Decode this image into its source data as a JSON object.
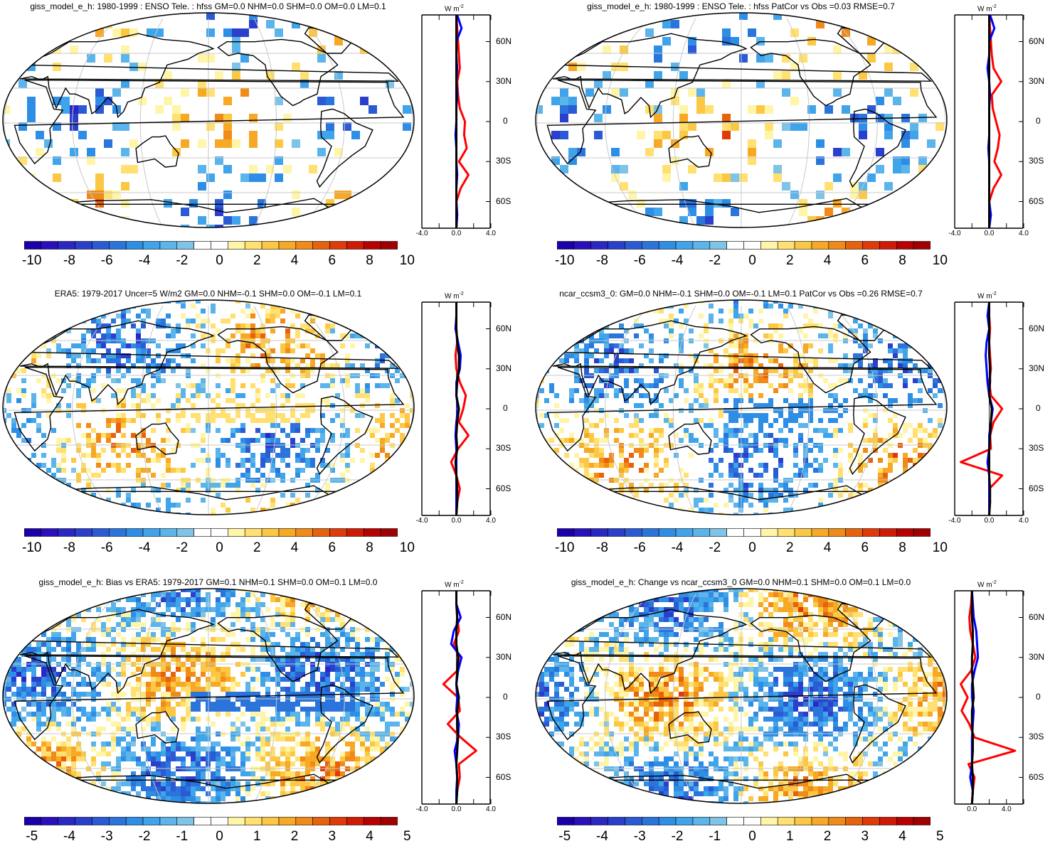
{
  "figure": {
    "colors": {
      "palette_pos": [
        "#ffffff",
        "#fff5a8",
        "#ffe070",
        "#fcc844",
        "#f7a824",
        "#f08a18",
        "#e8620c",
        "#e03a08",
        "#d01a06",
        "#b80000"
      ],
      "palette_neg": [
        "#7fc3e6",
        "#5bb4ea",
        "#40a4ea",
        "#2e8ee6",
        "#2a74dc",
        "#2a5ad4",
        "#2a3fcc",
        "#2a28c4",
        "#2a10bc",
        "#1a00aa"
      ],
      "model_line": "#0000ff",
      "obs_line": "#000000",
      "diff_line": "#ff0000",
      "grid": "#c8c8c8"
    },
    "panels": [
      {
        "title": "giss_model_e_h: 1980-1999 : ENSO Tele. : hfss GM=0.0 NHM=0.0 SHM=0.0 OM=0.0 LM=0.1",
        "colorbar_labels": [
          "-10",
          "-8",
          "-6",
          "-4",
          "-2",
          "0",
          "2",
          "4",
          "6",
          "8",
          "10"
        ],
        "units": "W m",
        "units_sup": "-2",
        "lat_labels": [
          "60N",
          "30N",
          "0",
          "30S",
          "60S"
        ],
        "x_ticks": [
          "-4.0",
          "0.0",
          "4.0"
        ]
      },
      {
        "title": "giss_model_e_h: 1980-1999 : ENSO Tele. : hfss PatCor vs Obs =0.03 RMSE=0.7",
        "colorbar_labels": [
          "-10",
          "-8",
          "-6",
          "-4",
          "-2",
          "0",
          "2",
          "4",
          "6",
          "8",
          "10"
        ],
        "units": "W m",
        "units_sup": "-2",
        "lat_labels": [
          "60N",
          "30N",
          "0",
          "30S",
          "60S"
        ],
        "x_ticks": [
          "-4.0",
          "0.0",
          "4.0"
        ]
      },
      {
        "title": "ERA5: 1979-2017 Uncer=5 W/m2 GM=0.0 NHM=-0.1 SHM=0.0 OM=-0.1 LM=0.1",
        "colorbar_labels": [
          "-10",
          "-8",
          "-6",
          "-4",
          "-2",
          "0",
          "2",
          "4",
          "6",
          "8",
          "10"
        ],
        "units": "W m",
        "units_sup": "-2",
        "lat_labels": [
          "60N",
          "30N",
          "0",
          "30S",
          "60S"
        ],
        "x_ticks": [
          "-4.0",
          "0.0",
          "4.0"
        ]
      },
      {
        "title": "ncar_ccsm3_0: GM=0.0 NHM=-0.1 SHM=0.0 OM=-0.1 LM=0.1 PatCor vs Obs =0.26 RMSE=0.7",
        "colorbar_labels": [
          "-10",
          "-8",
          "-6",
          "-4",
          "-2",
          "0",
          "2",
          "4",
          "6",
          "8",
          "10"
        ],
        "units": "W m",
        "units_sup": "-2",
        "lat_labels": [
          "60N",
          "30N",
          "0",
          "30S",
          "60S"
        ],
        "x_ticks": [
          "-4.0",
          "0.0",
          "4.0"
        ]
      },
      {
        "title": "giss_model_e_h: Bias vs ERA5: 1979-2017 GM=0.1 NHM=0.1 SHM=0.0 OM=0.1 LM=0.0",
        "colorbar_labels": [
          "-5",
          "-4",
          "-3",
          "-2",
          "-1",
          "0",
          "1",
          "2",
          "3",
          "4",
          "5"
        ],
        "units": "W m",
        "units_sup": "-2",
        "lat_labels": [
          "60N",
          "30N",
          "0",
          "30S",
          "60S"
        ],
        "x_ticks": [
          "-4.0",
          "0.0",
          "4.0"
        ]
      },
      {
        "title": "giss_model_e_h: Change vs ncar_ccsm3_0 GM=0.0 NHM=0.1 SHM=0.0 OM=0.1 LM=0.0",
        "colorbar_labels": [
          "-5",
          "-4",
          "-3",
          "-2",
          "-1",
          "0",
          "1",
          "2",
          "3",
          "4",
          "5"
        ],
        "units": "W m",
        "units_sup": "-2",
        "lat_labels": [
          "60N",
          "30N",
          "0",
          "30S",
          "60S"
        ],
        "x_ticks": [
          "0.0",
          "4.0"
        ]
      }
    ]
  },
  "chart_data": [
    {
      "type": "heatmap",
      "title": "giss_model_e_h: 1980-1999 : ENSO Tele. : hfss GM=0.0 NHM=0.0 SHM=0.0 OM=0.0 LM=0.1",
      "colorbar_range": [
        -10,
        10
      ],
      "colorbar_step": 1,
      "zonal_mean": {
        "ylim": [
          -80,
          80
        ],
        "xlim": [
          -4,
          4
        ],
        "units": "W m-2",
        "lat": [
          -80,
          -70,
          -60,
          -50,
          -40,
          -30,
          -20,
          -10,
          0,
          10,
          20,
          30,
          40,
          50,
          60,
          70,
          80
        ],
        "series": [
          {
            "values": [
              0.0,
              0.1,
              0.0,
              0.5,
              1.4,
              0.3,
              1.2,
              0.9,
              1.0,
              0.4,
              0.2,
              0.1,
              0.4,
              0.3,
              0.2,
              0.1,
              0.0
            ]
          },
          {
            "values": [
              0.0,
              0.1,
              0.0,
              0.0,
              0.1,
              0.0,
              0.0,
              -0.1,
              0.0,
              0.0,
              0.1,
              0.0,
              0.1,
              0.0,
              0.0,
              0.6,
              0.1
            ]
          },
          {
            "values": [
              0.0,
              0.0,
              0.0,
              0.0,
              0.0,
              0.0,
              0.0,
              0.0,
              0.0,
              0.0,
              0.0,
              0.0,
              0.0,
              0.0,
              0.0,
              0.0,
              0.0
            ]
          }
        ]
      }
    },
    {
      "type": "heatmap",
      "title": "giss_model_e_h: 1980-1999 : ENSO Tele. : hfss PatCor vs Obs =0.03 RMSE=0.7",
      "colorbar_range": [
        -10,
        10
      ],
      "colorbar_step": 1,
      "zonal_mean": {
        "ylim": [
          -80,
          80
        ],
        "xlim": [
          -4,
          4
        ],
        "units": "W m-2",
        "lat": [
          -80,
          -70,
          -60,
          -50,
          -40,
          -30,
          -20,
          -10,
          0,
          10,
          20,
          30,
          40,
          50,
          60,
          70,
          80
        ],
        "series": [
          {
            "values": [
              0.0,
              0.1,
              0.0,
              0.5,
              1.4,
              0.6,
              1.0,
              1.2,
              0.8,
              0.4,
              0.3,
              1.4,
              0.5,
              0.3,
              0.2,
              0.1,
              0.0
            ]
          },
          {
            "values": [
              0.0,
              0.2,
              0.0,
              0.0,
              0.0,
              0.0,
              -0.1,
              0.0,
              0.0,
              0.0,
              0.1,
              0.0,
              -0.2,
              0.0,
              0.0,
              0.6,
              0.1
            ]
          },
          {
            "values": [
              0.0,
              0.0,
              0.0,
              0.0,
              0.0,
              0.0,
              0.0,
              0.0,
              0.0,
              0.0,
              0.0,
              0.0,
              0.0,
              0.0,
              0.0,
              0.0,
              0.0
            ]
          }
        ]
      }
    },
    {
      "type": "heatmap",
      "title": "ERA5: 1979-2017 Uncer=5 W/m2 GM=0.0 NHM=-0.1 SHM=0.0 OM=-0.1 LM=0.1",
      "colorbar_range": [
        -10,
        10
      ],
      "colorbar_step": 1,
      "zonal_mean": {
        "ylim": [
          -80,
          80
        ],
        "xlim": [
          -4,
          4
        ],
        "units": "W m-2",
        "lat": [
          -80,
          -70,
          -60,
          -50,
          -40,
          -30,
          -20,
          -10,
          0,
          10,
          20,
          30,
          40,
          50,
          60,
          70,
          80
        ],
        "series": [
          {
            "values": [
              0.0,
              0.1,
              0.4,
              0.0,
              -0.6,
              0.2,
              1.4,
              0.3,
              0.8,
              1.1,
              0.4,
              0.0,
              -0.1,
              0.1,
              0.0,
              0.0,
              0.0
            ]
          },
          {
            "values": [
              0.0,
              0.0,
              0.0,
              0.0,
              0.0,
              0.0,
              -0.1,
              0.0,
              0.2,
              0.0,
              0.0,
              0.4,
              0.5,
              0.2,
              -0.1,
              0.0,
              0.0
            ]
          },
          {
            "values": [
              0.0,
              0.1,
              0.1,
              0.0,
              -0.1,
              0.1,
              0.0,
              0.1,
              0.3,
              0.0,
              0.1,
              0.3,
              0.3,
              0.1,
              0.0,
              0.0,
              0.0
            ]
          }
        ]
      }
    },
    {
      "type": "heatmap",
      "title": "ncar_ccsm3_0: GM=0.0 NHM=-0.1 SHM=0.0 OM=-0.1 LM=0.1 PatCor vs Obs =0.26 RMSE=0.7",
      "colorbar_range": [
        -10,
        10
      ],
      "colorbar_step": 1,
      "zonal_mean": {
        "ylim": [
          -80,
          80
        ],
        "xlim": [
          -4,
          4
        ],
        "units": "W m-2",
        "lat": [
          -80,
          -70,
          -60,
          -50,
          -40,
          -30,
          -20,
          -10,
          0,
          10,
          20,
          30,
          40,
          50,
          60,
          70,
          80
        ],
        "series": [
          {
            "values": [
              0.0,
              0.1,
              0.0,
              1.5,
              -3.3,
              0.2,
              0.1,
              0.5,
              1.5,
              0.2,
              0.0,
              0.2,
              0.1,
              0.0,
              0.1,
              0.0,
              0.0
            ]
          },
          {
            "values": [
              0.0,
              0.0,
              0.0,
              0.0,
              -0.2,
              0.0,
              0.0,
              0.2,
              0.4,
              0.0,
              -0.2,
              -0.3,
              -0.4,
              -0.3,
              0.0,
              -0.2,
              0.0
            ]
          },
          {
            "values": [
              0.0,
              0.1,
              0.1,
              0.0,
              0.0,
              0.0,
              0.1,
              0.2,
              0.3,
              0.0,
              0.1,
              0.1,
              0.0,
              0.0,
              0.0,
              0.0,
              0.0
            ]
          }
        ]
      }
    },
    {
      "type": "heatmap",
      "title": "giss_model_e_h: Bias vs ERA5: 1979-2017 GM=0.1 NHM=0.1 SHM=0.0 OM=0.1 LM=0.0",
      "colorbar_range": [
        -5,
        5
      ],
      "colorbar_step": 0.5,
      "zonal_mean": {
        "ylim": [
          -80,
          80
        ],
        "xlim": [
          -4,
          4
        ],
        "units": "W m-2",
        "lat": [
          -80,
          -70,
          -60,
          -50,
          -40,
          -30,
          -20,
          -10,
          0,
          10,
          20,
          30,
          40,
          50,
          60,
          70,
          80
        ],
        "series": [
          {
            "values": [
              0.0,
              0.1,
              0.4,
              0.3,
              2.3,
              0.5,
              -1.0,
              0.4,
              0.2,
              -1.5,
              0.1,
              0.3,
              -0.3,
              0.3,
              0.1,
              0.0,
              0.0
            ]
          },
          {
            "values": [
              0.0,
              0.0,
              0.1,
              0.0,
              -0.2,
              0.2,
              0.3,
              0.0,
              0.1,
              0.0,
              0.2,
              0.6,
              -0.6,
              -0.3,
              0.5,
              0.0,
              0.0
            ]
          },
          {
            "values": [
              0.0,
              0.1,
              0.1,
              0.0,
              0.1,
              0.2,
              0.1,
              0.1,
              0.3,
              0.0,
              0.1,
              0.2,
              0.0,
              0.0,
              0.1,
              0.0,
              0.0
            ]
          }
        ]
      }
    },
    {
      "type": "heatmap",
      "title": "giss_model_e_h: Change vs ncar_ccsm3_0 GM=0.0 NHM=0.1 SHM=0.0 OM=0.1 LM=0.0",
      "colorbar_range": [
        -5,
        5
      ],
      "colorbar_step": 0.5,
      "zonal_mean": {
        "ylim": [
          -80,
          80
        ],
        "xlim": [
          -2,
          6
        ],
        "units": "W m-2",
        "lat": [
          -80,
          -70,
          -60,
          -50,
          -40,
          -30,
          -20,
          -10,
          0,
          10,
          20,
          30,
          40,
          50,
          60,
          70,
          80
        ],
        "series": [
          {
            "values": [
              0.0,
              0.1,
              0.3,
              -0.4,
              5.0,
              0.3,
              -0.3,
              -1.2,
              -0.5,
              -1.3,
              -0.1,
              0.4,
              0.1,
              -0.2,
              -0.3,
              -0.1,
              0.0
            ]
          },
          {
            "values": [
              0.0,
              0.1,
              -0.2,
              0.0,
              0.0,
              0.0,
              0.1,
              0.2,
              0.0,
              0.0,
              0.3,
              0.7,
              0.6,
              0.5,
              0.2,
              0.1,
              0.0
            ]
          },
          {
            "values": [
              0.0,
              0.1,
              0.1,
              0.0,
              0.1,
              0.1,
              0.0,
              0.0,
              0.2,
              0.1,
              0.0,
              0.0,
              0.1,
              0.1,
              0.0,
              0.0,
              0.0
            ]
          }
        ]
      }
    }
  ]
}
